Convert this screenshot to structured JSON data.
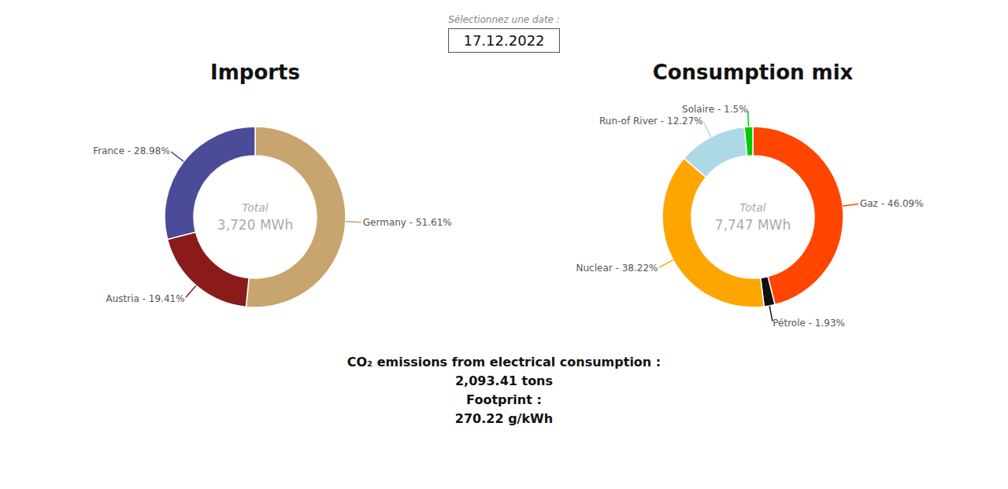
{
  "chart_data": [
    {
      "type": "pie",
      "title": "Imports",
      "categories": [
        "Germany - 51.61%",
        "Austria - 19.41%",
        "France - 28.98%"
      ],
      "values": [
        51.61,
        19.41,
        28.98
      ],
      "colors": [
        "#c8a46e",
        "#8b1a1a",
        "#4b4b9a"
      ],
      "annotations": [
        "Sélectionnez une date :",
        "17.12.2022",
        "Total",
        "3,720 MWh"
      ]
    },
    {
      "type": "pie",
      "title": "Consumption mix",
      "categories": [
        "Gaz - 46.09%",
        "Pétrole - 1.93%",
        "Nuclear - 38.22%",
        "Run-of River - 12.27%",
        "Solaire - 1.5%"
      ],
      "values": [
        46.09,
        1.93,
        38.22,
        12.27,
        1.5
      ],
      "colors": [
        "#ff4500",
        "#111111",
        "#ffa500",
        "#add8e6",
        "#00cc00"
      ],
      "annotations": [
        "Total",
        "7,747 MWh",
        "CO₂ emissions from electrical consumption :",
        "2,093.41 tons",
        "Footprint :",
        "270.22 g/kWh"
      ]
    }
  ]
}
